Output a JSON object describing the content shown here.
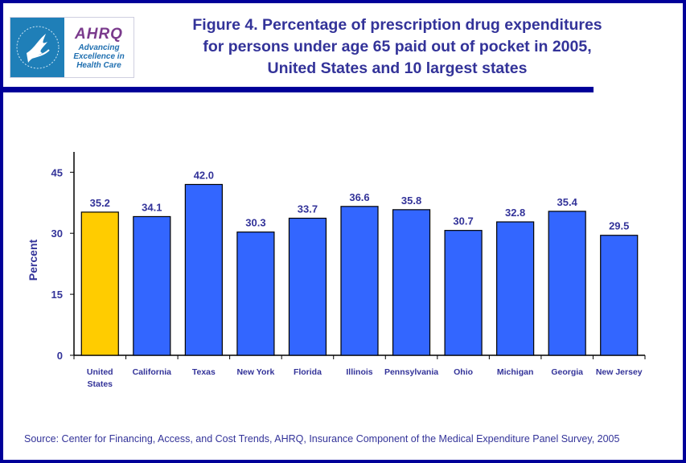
{
  "logo": {
    "brand": "AHRQ",
    "tagline": [
      "Advancing",
      "Excellence in",
      "Health Care"
    ],
    "hhs_icon": "hhs-eagle-icon"
  },
  "title_lines": [
    "Figure 4. Percentage of prescription drug expenditures",
    "for persons under age 65 paid out of pocket in 2005,",
    "United States and 10 largest states"
  ],
  "source": "Source: Center for Financing, Access, and Cost Trends, AHRQ, Insurance Component of the Medical Expenditure Panel Survey, 2005",
  "colors": {
    "highlight": "#FFCC00",
    "bar": "#3366FF",
    "text": "#333399",
    "border": "#000099"
  },
  "chart_data": {
    "type": "bar",
    "title": "Figure 4. Percentage of prescription drug expenditures for persons under age 65 paid out of pocket in 2005, United States and 10 largest states",
    "xlabel": "",
    "ylabel": "Percent",
    "ylim": [
      0,
      50
    ],
    "yticks": [
      0,
      15,
      30,
      45
    ],
    "grid": false,
    "categories": [
      [
        "United",
        "States"
      ],
      [
        "California"
      ],
      [
        "Texas"
      ],
      [
        "New York"
      ],
      [
        "Florida"
      ],
      [
        "Illinois"
      ],
      [
        "Pennsylvania"
      ],
      [
        "Ohio"
      ],
      [
        "Michigan"
      ],
      [
        "Georgia"
      ],
      [
        "New Jersey"
      ]
    ],
    "values": [
      35.2,
      34.1,
      42.0,
      30.3,
      33.7,
      36.6,
      35.8,
      30.7,
      32.8,
      35.4,
      29.5
    ],
    "labels": [
      "35.2",
      "34.1",
      "42.0",
      "30.3",
      "33.7",
      "36.6",
      "35.8",
      "30.7",
      "32.8",
      "35.4",
      "29.5"
    ],
    "highlight_index": 0
  }
}
